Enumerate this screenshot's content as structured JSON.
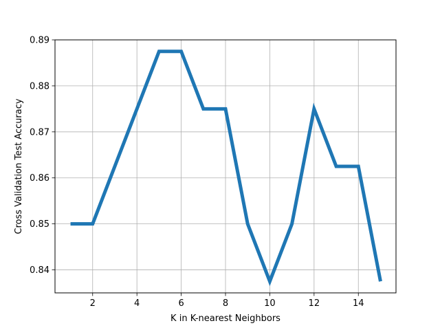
{
  "chart_data": {
    "type": "line",
    "title": "",
    "xlabel": "K in K-nearest Neighbors",
    "ylabel": "Cross Validation Test Accuracy",
    "xlim": [
      0.3,
      15.7
    ],
    "ylim": [
      0.835,
      0.89
    ],
    "x_ticks": [
      2,
      4,
      6,
      8,
      10,
      12,
      14
    ],
    "y_ticks": [
      0.84,
      0.85,
      0.86,
      0.87,
      0.88,
      0.89
    ],
    "y_tick_labels": [
      "0.84",
      "0.85",
      "0.86",
      "0.87",
      "0.88",
      "0.89"
    ],
    "grid": true,
    "legend": "none",
    "series": [
      {
        "color": "#1f77b4",
        "x": [
          1,
          2,
          3,
          4,
          5,
          6,
          7,
          8,
          9,
          10,
          11,
          12,
          13,
          14,
          15
        ],
        "y": [
          0.85,
          0.85,
          0.8625,
          0.875,
          0.8875,
          0.8875,
          0.875,
          0.875,
          0.85,
          0.8375,
          0.85,
          0.875,
          0.8625,
          0.8625,
          0.8375
        ]
      }
    ]
  }
}
